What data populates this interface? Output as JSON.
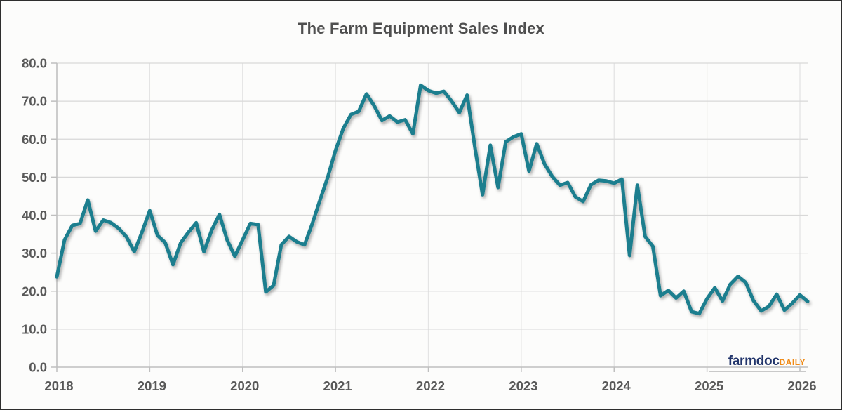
{
  "title": "The Farm Equipment Sales Index",
  "logo": {
    "brand": "farmdoc",
    "suffix": "DAILY"
  },
  "colors": {
    "series_teal": "#1a7e8e",
    "reference_dots": "#111111",
    "gridline": "#d8d8d8",
    "axis": "#bfbfbf",
    "tick_labels": "#595959",
    "title_text": "#4f4f4f",
    "logo_navy": "#22356b",
    "logo_orange": "#ef8914"
  },
  "chart_data": {
    "type": "line",
    "title": "The Farm Equipment Sales Index",
    "xlabel": "",
    "ylabel": "",
    "x_tick_labels": [
      "2018",
      "2019",
      "2020",
      "2021",
      "2022",
      "2023",
      "2024",
      "2025",
      "2026"
    ],
    "y_tick_labels": [
      "0.0",
      "10.0",
      "20.0",
      "30.0",
      "40.0",
      "50.0",
      "60.0",
      "70.0",
      "80.0"
    ],
    "ylim": [
      0,
      80
    ],
    "y_step": 10,
    "grid": true,
    "legend": "none",
    "reference_line": {
      "value": 50,
      "style": "round-dotted",
      "color": "#111111"
    },
    "series": [
      {
        "name": "Farm Equipment Sales Index",
        "frequency": "monthly",
        "start": "2018-01",
        "end": "2026-02",
        "color": "#1a7e8e",
        "values": [
          23.8,
          33.5,
          37.3,
          37.8,
          44.0,
          35.8,
          38.7,
          38.0,
          36.5,
          34.3,
          30.4,
          35.5,
          41.2,
          34.7,
          32.8,
          27.0,
          32.7,
          35.5,
          38.0,
          30.4,
          36.0,
          40.2,
          33.5,
          29.2,
          33.5,
          37.8,
          37.5,
          19.8,
          21.5,
          32.2,
          34.4,
          33.0,
          32.2,
          37.7,
          44.0,
          50.0,
          57.0,
          62.8,
          66.5,
          67.3,
          71.9,
          68.8,
          64.9,
          66.1,
          64.5,
          65.1,
          61.4,
          74.2,
          72.8,
          72.1,
          72.6,
          70.0,
          67.0,
          71.6,
          58.0,
          45.4,
          58.4,
          47.3,
          59.3,
          60.6,
          61.4,
          51.6,
          58.8,
          53.5,
          50.2,
          47.9,
          48.6,
          44.8,
          43.6,
          48.0,
          49.2,
          49.0,
          48.4,
          49.5,
          29.4,
          47.9,
          34.4,
          31.8,
          18.8,
          20.2,
          18.2,
          20.0,
          14.6,
          14.1,
          18.0,
          20.9,
          17.4,
          21.8,
          23.9,
          22.3,
          17.5,
          14.8,
          16.0,
          19.2,
          15.0,
          16.8,
          19.0,
          17.3
        ]
      }
    ]
  }
}
